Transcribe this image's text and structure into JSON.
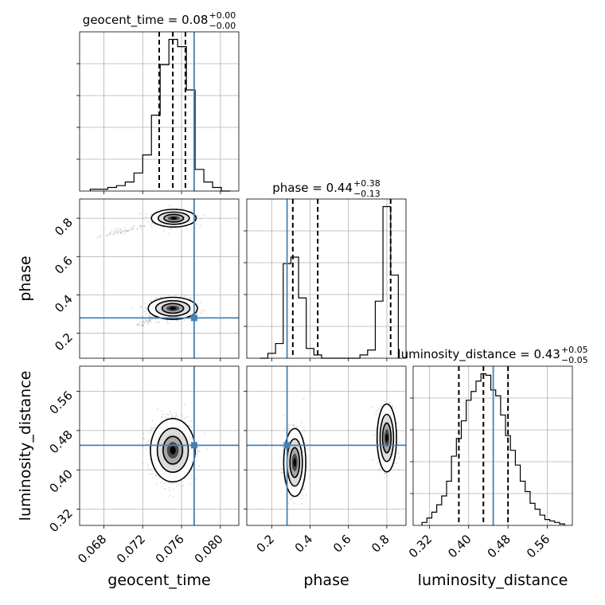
{
  "chart_data": {
    "type": "corner",
    "parameters": [
      "geocent_time",
      "phase",
      "luminosity_distance"
    ],
    "titles": [
      {
        "param": "geocent_time",
        "text": "geocent_time = 0.08",
        "sup": "+0.00",
        "sub": "−0.00"
      },
      {
        "param": "phase",
        "text": "phase = 0.44",
        "sup": "+0.38",
        "sub": "−0.13"
      },
      {
        "param": "luminosity_distance",
        "text": "luminosity_distance = 0.43",
        "sup": "+0.05",
        "sub": "−0.05"
      }
    ],
    "axes": {
      "geocent_time": {
        "label": "geocent_time",
        "range": [
          0.0655,
          0.0819
        ],
        "ticks": [
          0.068,
          0.072,
          0.076,
          0.08
        ],
        "tick_labels": [
          "0.068",
          "0.072",
          "0.076",
          "0.080"
        ]
      },
      "phase": {
        "label": "phase",
        "range": [
          0.07,
          0.9
        ],
        "ticks": [
          0.2,
          0.4,
          0.6,
          0.8
        ],
        "tick_labels": [
          "0.2",
          "0.4",
          "0.6",
          "0.8"
        ]
      },
      "luminosity_distance": {
        "label": "luminosity_distance",
        "range": [
          0.287,
          0.611
        ],
        "ticks": [
          0.32,
          0.4,
          0.48,
          0.56
        ],
        "tick_labels": [
          "0.32",
          "0.40",
          "0.48",
          "0.56"
        ]
      }
    },
    "truths": {
      "geocent_time": 0.0773,
      "phase": 0.28,
      "luminosity_distance": 0.45
    },
    "quantiles": {
      "geocent_time": [
        0.0737,
        0.0751,
        0.0764
      ],
      "phase": [
        0.31,
        0.44,
        0.82
      ],
      "luminosity_distance": [
        0.38,
        0.43,
        0.48
      ]
    },
    "histograms": {
      "geocent_time": {
        "edges": [
          0.0666,
          0.0675,
          0.0684,
          0.0693,
          0.0702,
          0.0711,
          0.072,
          0.0729,
          0.0738,
          0.0747,
          0.0756,
          0.0765,
          0.0774,
          0.0783,
          0.0792,
          0.0801,
          0.081
        ],
        "counts": [
          1,
          1,
          2,
          3,
          5,
          10,
          20,
          42,
          70,
          84,
          80,
          56,
          12,
          5,
          2,
          0
        ]
      },
      "phase": {
        "edges": [
          0.14,
          0.18,
          0.22,
          0.26,
          0.3,
          0.34,
          0.38,
          0.42,
          0.46,
          0.5,
          0.54,
          0.58,
          0.62,
          0.66,
          0.7,
          0.74,
          0.78,
          0.82,
          0.86
        ],
        "counts": [
          0,
          3,
          9,
          58,
          62,
          37,
          6,
          2,
          0,
          0,
          0,
          0,
          0,
          2,
          5,
          35,
          93,
          51
        ]
      },
      "luminosity_distance": {
        "edges": [
          0.305,
          0.315,
          0.325,
          0.335,
          0.345,
          0.355,
          0.365,
          0.375,
          0.385,
          0.395,
          0.405,
          0.415,
          0.425,
          0.435,
          0.445,
          0.455,
          0.465,
          0.475,
          0.485,
          0.495,
          0.505,
          0.515,
          0.525,
          0.535,
          0.545,
          0.555,
          0.565,
          0.575,
          0.585,
          0.595
        ],
        "counts": [
          2,
          5,
          9,
          14,
          20,
          30,
          47,
          59,
          71,
          85,
          91,
          98,
          103,
          102,
          92,
          88,
          75,
          61,
          51,
          41,
          30,
          23,
          15,
          11,
          7,
          4,
          3,
          2,
          1
        ]
      }
    },
    "contour_pairs": [
      {
        "x": "geocent_time",
        "y": "phase"
      },
      {
        "x": "geocent_time",
        "y": "luminosity_distance"
      },
      {
        "x": "phase",
        "y": "luminosity_distance"
      }
    ],
    "colors": {
      "truth": "#4682b4",
      "hist": "#000000",
      "quantile": "#000000",
      "grid": "#b0b0b0",
      "points": "#808080"
    }
  }
}
